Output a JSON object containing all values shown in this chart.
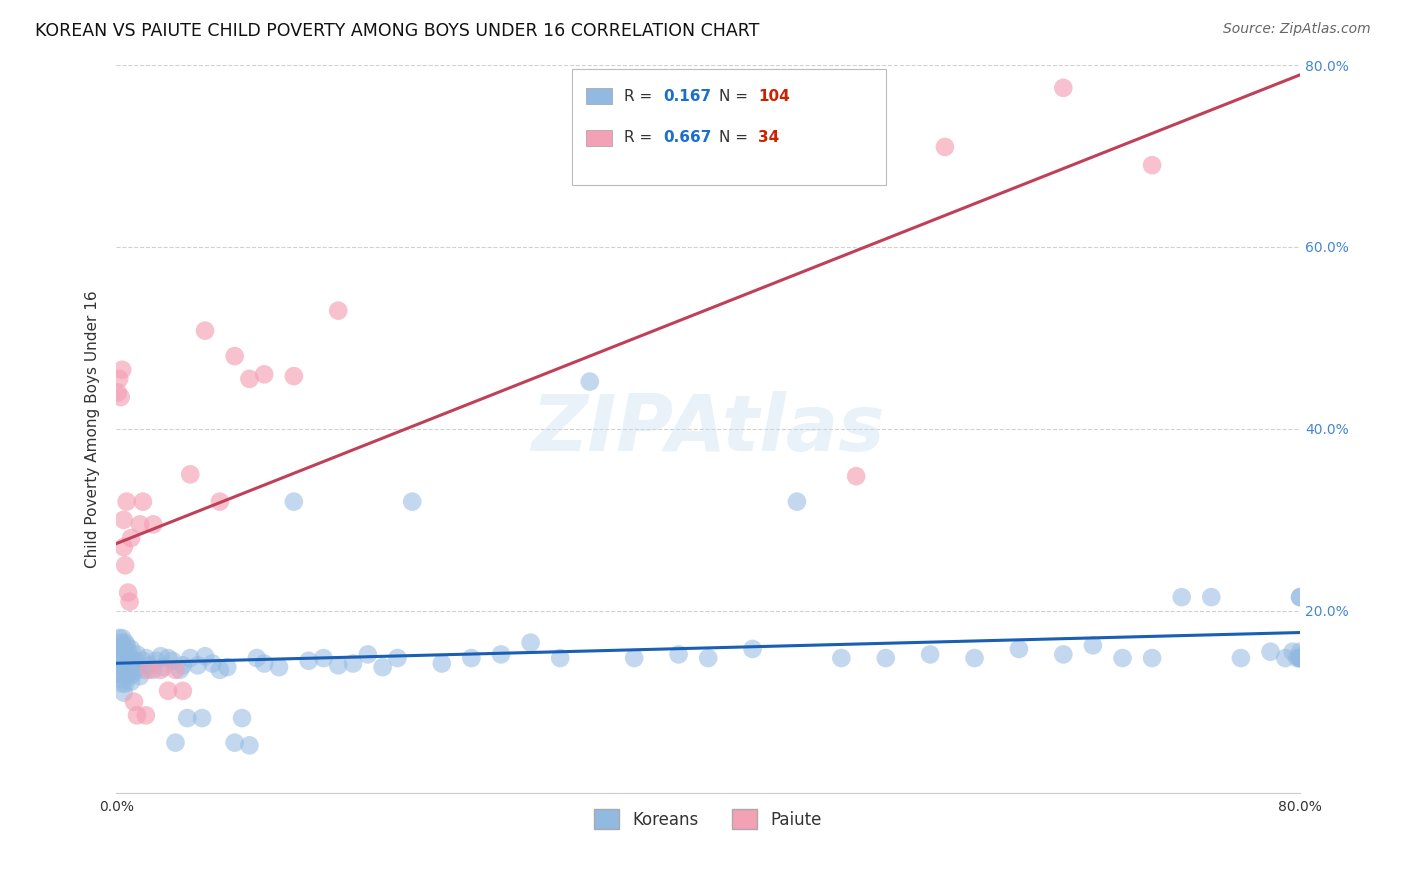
{
  "title": "KOREAN VS PAIUTE CHILD POVERTY AMONG BOYS UNDER 16 CORRELATION CHART",
  "source": "Source: ZipAtlas.com",
  "ylabel": "Child Poverty Among Boys Under 16",
  "watermark": "ZIPAtlas",
  "xlim": [
    0.0,
    0.8
  ],
  "ylim": [
    0.0,
    0.8
  ],
  "xtick_positions": [
    0.0,
    0.1,
    0.2,
    0.3,
    0.4,
    0.5,
    0.6,
    0.7,
    0.8
  ],
  "xticklabels": [
    "0.0%",
    "",
    "",
    "",
    "",
    "",
    "",
    "",
    "80.0%"
  ],
  "ytick_positions": [
    0.0,
    0.2,
    0.4,
    0.6,
    0.8
  ],
  "yticklabels_right": [
    "",
    "20.0%",
    "40.0%",
    "60.0%",
    "80.0%"
  ],
  "korean_R": 0.167,
  "korean_N": 104,
  "paiute_R": 0.667,
  "paiute_N": 34,
  "korean_color": "#92b9e0",
  "paiute_color": "#f4a0b5",
  "korean_line_color": "#1a5fb4",
  "paiute_line_color": "#c0405a",
  "legend_R_color": "#1a6fcc",
  "legend_N_color": "#cc2200",
  "tick_color_right": "#4488cc",
  "korean_x": [
    0.001,
    0.001,
    0.002,
    0.002,
    0.002,
    0.003,
    0.003,
    0.003,
    0.004,
    0.004,
    0.004,
    0.004,
    0.005,
    0.005,
    0.005,
    0.005,
    0.006,
    0.006,
    0.006,
    0.007,
    0.007,
    0.007,
    0.008,
    0.008,
    0.009,
    0.009,
    0.01,
    0.01,
    0.011,
    0.012,
    0.013,
    0.014,
    0.015,
    0.016,
    0.018,
    0.019,
    0.02,
    0.022,
    0.025,
    0.027,
    0.03,
    0.032,
    0.035,
    0.038,
    0.04,
    0.043,
    0.045,
    0.048,
    0.05,
    0.055,
    0.058,
    0.06,
    0.065,
    0.07,
    0.075,
    0.08,
    0.085,
    0.09,
    0.095,
    0.1,
    0.11,
    0.12,
    0.13,
    0.14,
    0.15,
    0.16,
    0.17,
    0.18,
    0.19,
    0.2,
    0.22,
    0.24,
    0.26,
    0.28,
    0.3,
    0.32,
    0.35,
    0.38,
    0.4,
    0.43,
    0.46,
    0.49,
    0.52,
    0.55,
    0.58,
    0.61,
    0.64,
    0.66,
    0.68,
    0.7,
    0.72,
    0.74,
    0.76,
    0.78,
    0.79,
    0.795,
    0.798,
    0.8,
    0.8,
    0.8,
    0.8,
    0.8,
    0.8,
    0.8
  ],
  "korean_y": [
    0.14,
    0.16,
    0.13,
    0.15,
    0.17,
    0.125,
    0.145,
    0.165,
    0.12,
    0.14,
    0.155,
    0.17,
    0.11,
    0.13,
    0.15,
    0.16,
    0.12,
    0.145,
    0.165,
    0.13,
    0.148,
    0.162,
    0.135,
    0.155,
    0.128,
    0.148,
    0.122,
    0.158,
    0.14,
    0.132,
    0.145,
    0.152,
    0.138,
    0.128,
    0.145,
    0.135,
    0.148,
    0.14,
    0.135,
    0.145,
    0.15,
    0.138,
    0.148,
    0.145,
    0.055,
    0.135,
    0.14,
    0.082,
    0.148,
    0.14,
    0.082,
    0.15,
    0.142,
    0.135,
    0.138,
    0.055,
    0.082,
    0.052,
    0.148,
    0.142,
    0.138,
    0.32,
    0.145,
    0.148,
    0.14,
    0.142,
    0.152,
    0.138,
    0.148,
    0.32,
    0.142,
    0.148,
    0.152,
    0.165,
    0.148,
    0.452,
    0.148,
    0.152,
    0.148,
    0.158,
    0.32,
    0.148,
    0.148,
    0.152,
    0.148,
    0.158,
    0.152,
    0.162,
    0.148,
    0.148,
    0.215,
    0.215,
    0.148,
    0.155,
    0.148,
    0.155,
    0.148,
    0.155,
    0.215,
    0.215,
    0.148,
    0.148,
    0.148,
    0.148
  ],
  "paiute_x": [
    0.001,
    0.002,
    0.003,
    0.004,
    0.005,
    0.005,
    0.006,
    0.007,
    0.008,
    0.009,
    0.01,
    0.012,
    0.014,
    0.016,
    0.018,
    0.02,
    0.022,
    0.025,
    0.03,
    0.035,
    0.04,
    0.045,
    0.05,
    0.06,
    0.07,
    0.08,
    0.09,
    0.1,
    0.12,
    0.15,
    0.5,
    0.56,
    0.64,
    0.7
  ],
  "paiute_y": [
    0.44,
    0.455,
    0.435,
    0.465,
    0.27,
    0.3,
    0.25,
    0.32,
    0.22,
    0.21,
    0.28,
    0.1,
    0.085,
    0.295,
    0.32,
    0.085,
    0.135,
    0.295,
    0.135,
    0.112,
    0.135,
    0.112,
    0.35,
    0.508,
    0.32,
    0.48,
    0.455,
    0.46,
    0.458,
    0.53,
    0.348,
    0.71,
    0.775,
    0.69
  ],
  "grid_color": "#cccccc",
  "background_color": "#ffffff",
  "title_fontsize": 12.5,
  "axis_label_fontsize": 11,
  "tick_fontsize": 10,
  "legend_fontsize": 11,
  "source_fontsize": 10
}
